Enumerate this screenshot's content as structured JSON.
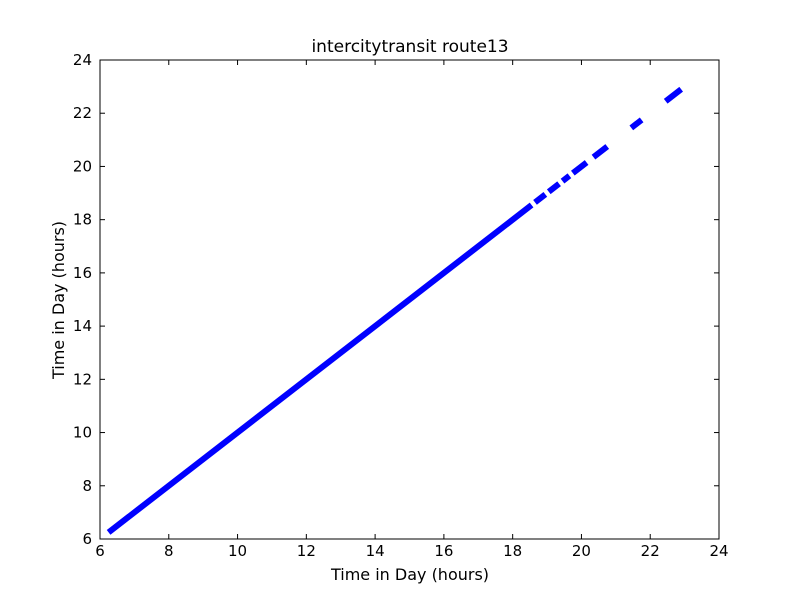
{
  "chart_data": {
    "type": "line",
    "title": "intercitytransit route13",
    "xlabel": "Time in Day (hours)",
    "ylabel": "Time in Day (hours)",
    "xlim": [
      6,
      24
    ],
    "ylim": [
      6,
      24
    ],
    "xticks": [
      "6",
      "8",
      "10",
      "12",
      "14",
      "16",
      "18",
      "20",
      "22",
      "24"
    ],
    "yticks": [
      "6",
      "8",
      "10",
      "12",
      "14",
      "16",
      "18",
      "20",
      "22",
      "24"
    ],
    "grid": false,
    "legend": "none",
    "series": [
      {
        "color": "#0000ff",
        "segments": [
          [
            6.25,
            18.55
          ],
          [
            18.65,
            18.95
          ],
          [
            19.05,
            19.35
          ],
          [
            19.45,
            19.65
          ],
          [
            19.75,
            20.15
          ],
          [
            20.35,
            20.75
          ],
          [
            21.45,
            21.75
          ],
          [
            22.45,
            22.9
          ]
        ]
      }
    ]
  }
}
